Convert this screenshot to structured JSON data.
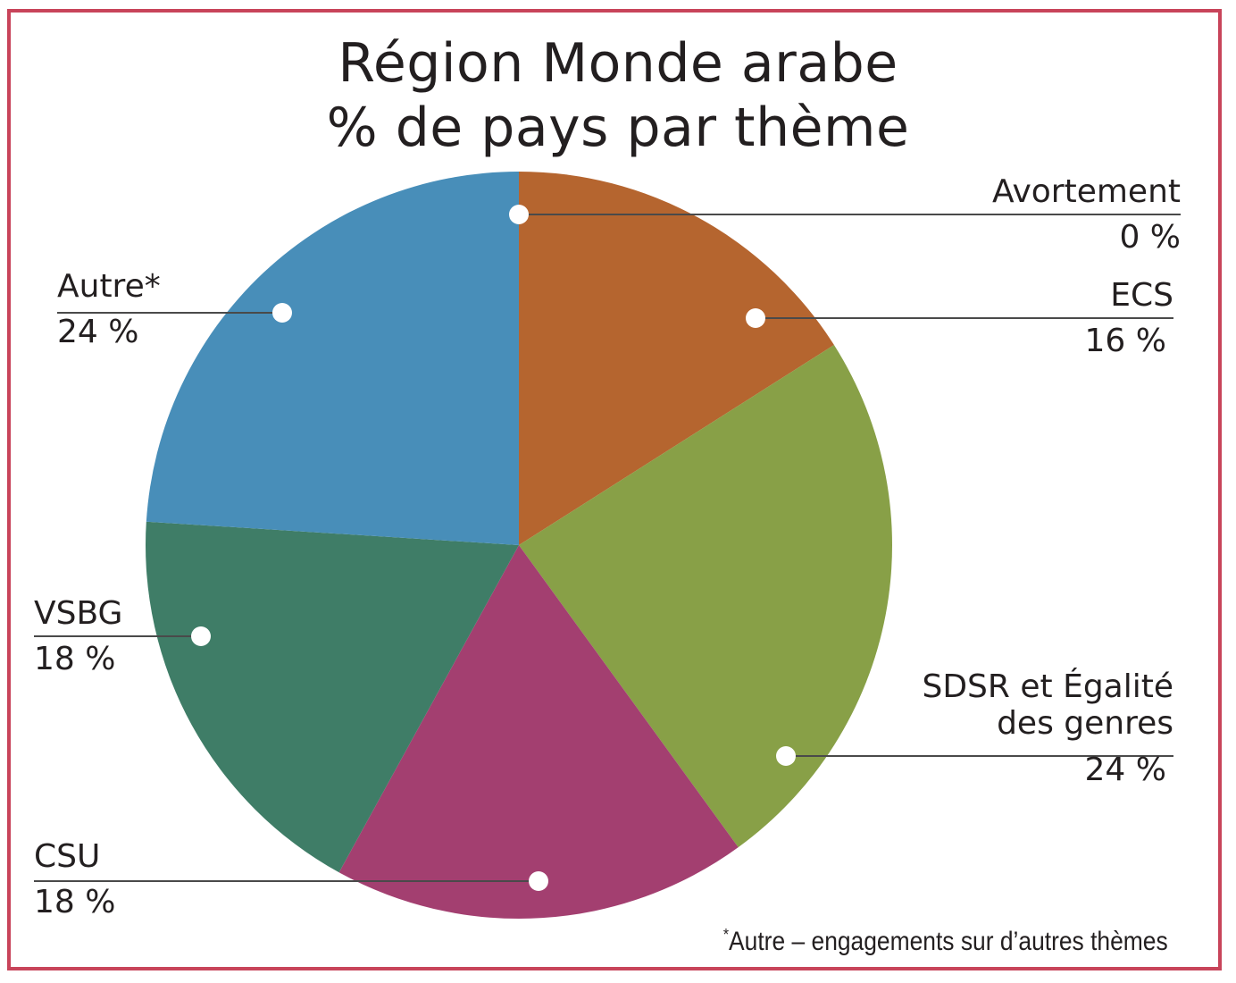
{
  "chart_data": {
    "type": "pie",
    "title_lines": [
      "Région Monde arabe",
      "% de pays par thème"
    ],
    "slices": [
      {
        "label": "Avortement",
        "value_label": "0 %",
        "value": 0,
        "color": "#b5652f"
      },
      {
        "label": "ECS",
        "value_label": "16 %",
        "value": 16,
        "color": "#b5652f"
      },
      {
        "label": "SDSR et Égalité des genres",
        "label_lines": [
          "SDSR et Égalité",
          "des genres"
        ],
        "value_label": "24 %",
        "value": 24,
        "color": "#88a047"
      },
      {
        "label": "CSU",
        "value_label": "18 %",
        "value": 18,
        "color": "#a33f70"
      },
      {
        "label": "VSBG",
        "value_label": "18 %",
        "value": 18,
        "color": "#3f7d67"
      },
      {
        "label": "Autre*",
        "value_label": "24 %",
        "value": 24,
        "color": "#488eb9"
      }
    ],
    "footnote_marker": "*",
    "footnote": "Autre – engagements sur d’autres thèmes"
  }
}
